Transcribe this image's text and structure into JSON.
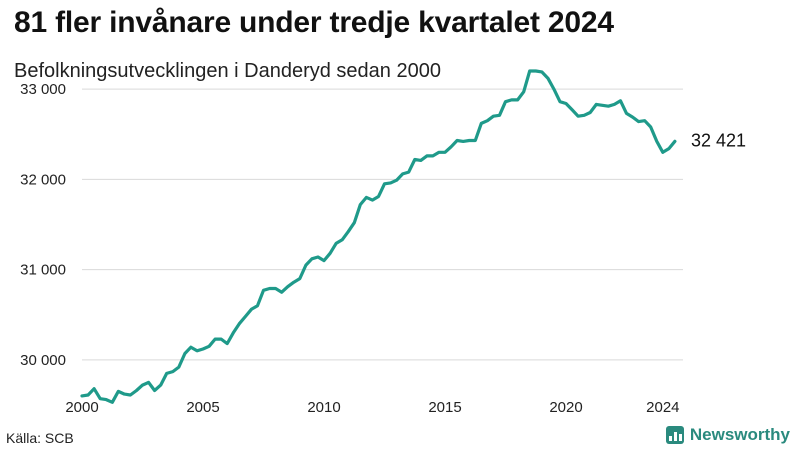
{
  "title": "81 fler invånare under tredje kvartalet 2024",
  "subtitle": "Befolkningsutvecklingen i Danderyd sedan 2000",
  "source": "Källa: SCB",
  "brand": {
    "name": "Newsworthy",
    "icon": "newsworthy-logo-icon",
    "color": "#2a8a7e"
  },
  "colors": {
    "line": "#1f9a8a",
    "grid": "#d9d9d9"
  },
  "chart_data": {
    "type": "line",
    "title": "81 fler invånare under tredje kvartalet 2024",
    "subtitle": "Befolkningsutvecklingen i Danderyd sedan 2000",
    "xlabel": "",
    "ylabel": "",
    "xlim": [
      2000,
      2024.75
    ],
    "ylim": [
      29400,
      33300
    ],
    "grid": true,
    "x_ticks": [
      2000,
      2005,
      2010,
      2015,
      2020,
      2024
    ],
    "y_ticks": [
      30000,
      31000,
      32000,
      33000
    ],
    "y_tick_labels": [
      "30 000",
      "31 000",
      "32 000",
      "33 000"
    ],
    "end_label": "32 421",
    "series": [
      {
        "x": [
          2000,
          2000.25,
          2000.5,
          2000.75,
          2001,
          2001.25,
          2001.5,
          2001.75,
          2002,
          2002.25,
          2002.5,
          2002.75,
          2003,
          2003.25,
          2003.5,
          2003.75,
          2004,
          2004.25,
          2004.5,
          2004.75,
          2005,
          2005.25,
          2005.5,
          2005.75,
          2006,
          2006.25,
          2006.5,
          2006.75,
          2007,
          2007.25,
          2007.5,
          2007.75,
          2008,
          2008.25,
          2008.5,
          2008.75,
          2009,
          2009.25,
          2009.5,
          2009.75,
          2010,
          2010.25,
          2010.5,
          2010.75,
          2011,
          2011.25,
          2011.5,
          2011.75,
          2012,
          2012.25,
          2012.5,
          2012.75,
          2013,
          2013.25,
          2013.5,
          2013.75,
          2014,
          2014.25,
          2014.5,
          2014.75,
          2015,
          2015.25,
          2015.5,
          2015.75,
          2016,
          2016.25,
          2016.5,
          2016.75,
          2017,
          2017.25,
          2017.5,
          2017.75,
          2018,
          2018.25,
          2018.5,
          2018.75,
          2019,
          2019.25,
          2019.5,
          2019.75,
          2020,
          2020.25,
          2020.5,
          2020.75,
          2021,
          2021.25,
          2021.5,
          2021.75,
          2022,
          2022.25,
          2022.5,
          2022.75,
          2023,
          2023.25,
          2023.5,
          2023.75,
          2024,
          2024.25,
          2024.5
        ],
        "values": [
          29600,
          29610,
          29680,
          29570,
          29560,
          29530,
          29650,
          29620,
          29610,
          29660,
          29720,
          29750,
          29660,
          29720,
          29850,
          29870,
          29920,
          30070,
          30140,
          30100,
          30120,
          30150,
          30230,
          30230,
          30180,
          30300,
          30400,
          30480,
          30560,
          30600,
          30770,
          30790,
          30790,
          30750,
          30810,
          30860,
          30900,
          31050,
          31120,
          31140,
          31100,
          31180,
          31290,
          31330,
          31420,
          31520,
          31720,
          31800,
          31770,
          31810,
          31950,
          31960,
          31990,
          32060,
          32080,
          32220,
          32210,
          32260,
          32260,
          32300,
          32300,
          32360,
          32430,
          32420,
          32430,
          32430,
          32620,
          32650,
          32700,
          32710,
          32860,
          32880,
          32880,
          32970,
          33200,
          33200,
          33190,
          33120,
          33000,
          32860,
          32840,
          32770,
          32700,
          32710,
          32740,
          32830,
          32820,
          32810,
          32830,
          32870,
          32730,
          32690,
          32640,
          32650,
          32580,
          32420,
          32300,
          32340,
          32421
        ]
      }
    ]
  }
}
